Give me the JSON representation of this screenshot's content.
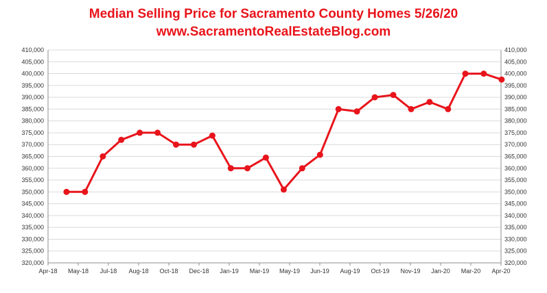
{
  "chart_data": {
    "type": "line",
    "title": "Median Selling  Price for Sacramento County Homes 5/26/20",
    "subtitle": "www.SacramentoRealEstateBlog.com",
    "xlabel": "",
    "ylabel": "",
    "x_tick_labels": [
      "Apr-18",
      "May-18",
      "Jul-18",
      "Aug-18",
      "Oct-18",
      "Dec-18",
      "Jan-19",
      "Mar-19",
      "May-19",
      "Jun-19",
      "Aug-19",
      "Oct-19",
      "Nov-19",
      "Jan-20",
      "Mar-20",
      "Apr-20"
    ],
    "y_tick_labels": [
      "320,000",
      "325,000",
      "330,000",
      "335,000",
      "340,000",
      "345,000",
      "350,000",
      "355,000",
      "360,000",
      "365,000",
      "370,000",
      "375,000",
      "380,000",
      "385,000",
      "390,000",
      "395,000",
      "400,000",
      "405,000",
      "410,000"
    ],
    "ylim": [
      320000,
      410000
    ],
    "x_range": [
      "2018-03-31",
      "2020-04-30"
    ],
    "grid": true,
    "line_color": "#e8141b",
    "series": [
      {
        "x": [
          "2018-05-01",
          "2018-06-01",
          "2018-07-01",
          "2018-08-01",
          "2018-09-01",
          "2018-10-01",
          "2018-11-01",
          "2018-12-01",
          "2019-01-01",
          "2019-02-01",
          "2019-03-01",
          "2019-04-01",
          "2019-05-01",
          "2019-06-01",
          "2019-07-01",
          "2019-08-01",
          "2019-09-01",
          "2019-10-01",
          "2019-11-01",
          "2019-12-01",
          "2020-01-01",
          "2020-02-01",
          "2020-03-01",
          "2020-04-01",
          "2020-05-01"
        ],
        "values": [
          350000,
          350000,
          365000,
          372000,
          375000,
          375000,
          370000,
          370000,
          373800,
          360000,
          360000,
          364500,
          351000,
          360000,
          365700,
          385000,
          384000,
          390000,
          391000,
          385000,
          388000,
          385000,
          400000,
          400000,
          397500
        ]
      }
    ]
  }
}
